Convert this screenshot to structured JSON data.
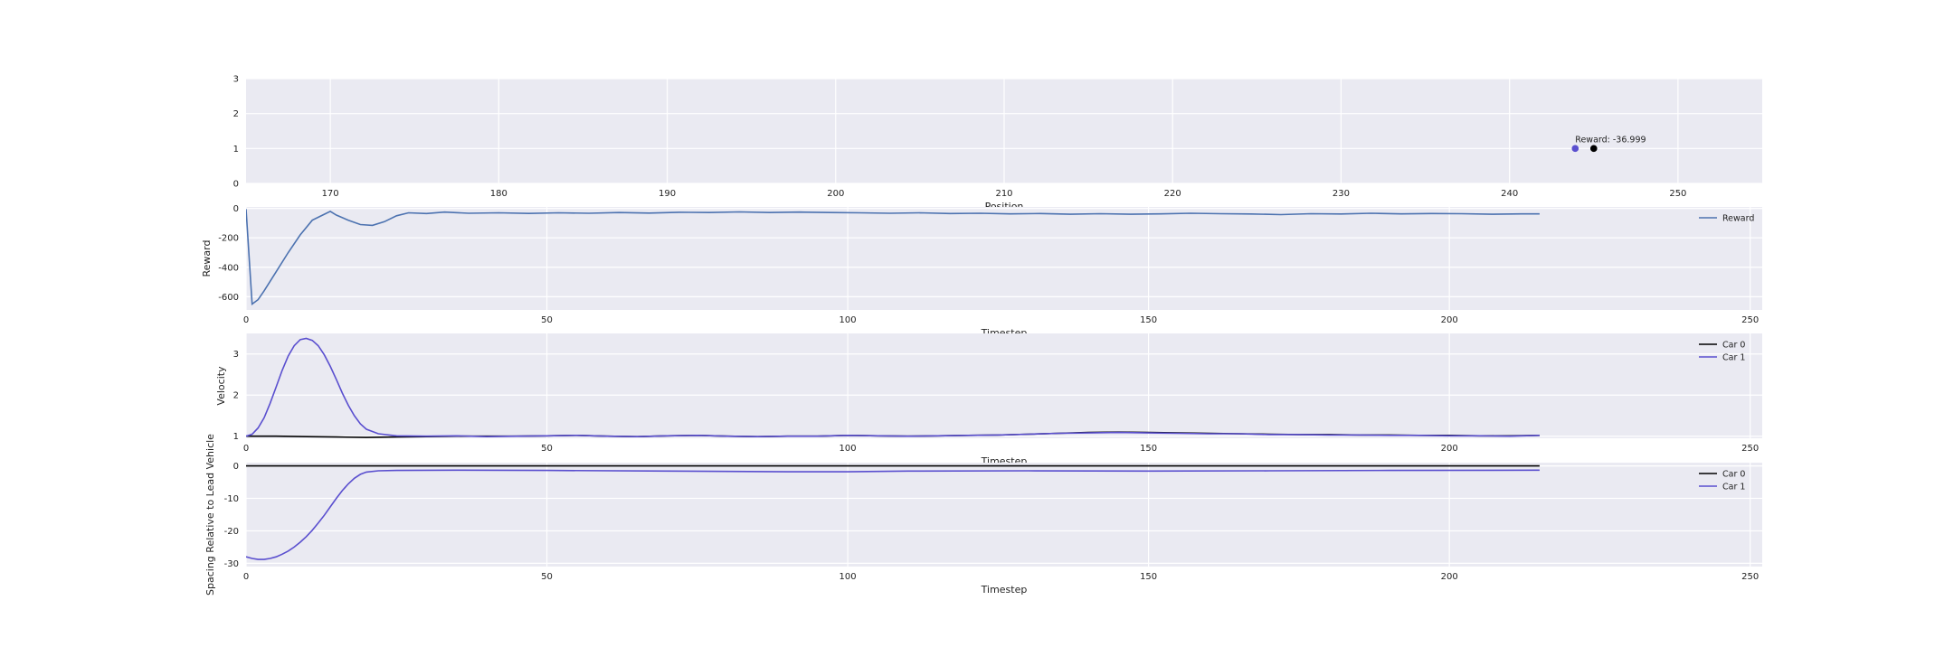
{
  "chart_data": [
    {
      "type": "scatter",
      "xlabel": "Position",
      "ylabel": "",
      "xlim": [
        165,
        255
      ],
      "ylim": [
        0,
        3
      ],
      "xticks": [
        170,
        180,
        190,
        200,
        210,
        220,
        230,
        240,
        250
      ],
      "yticks": [
        0,
        1,
        2,
        3
      ],
      "grid": true,
      "points": [
        {
          "x": 243.9,
          "y": 1,
          "color": "#5a4fcf"
        },
        {
          "x": 245.0,
          "y": 1,
          "color": "#000000"
        }
      ],
      "annotation": {
        "text": "Reward: -36.999",
        "x": 243.9,
        "y": 1.1
      }
    },
    {
      "type": "line",
      "xlabel": "Timestep",
      "ylabel": "Reward",
      "xlim": [
        0,
        252
      ],
      "ylim": [
        -690,
        10
      ],
      "xticks": [
        0,
        50,
        100,
        150,
        200,
        250
      ],
      "yticks": [
        0,
        -200,
        -400,
        -600
      ],
      "grid": true,
      "legend_position": "top-right",
      "series": [
        {
          "name": "Reward",
          "color": "#4c72b0",
          "points": [
            [
              0,
              -5
            ],
            [
              1,
              -650
            ],
            [
              2,
              -620
            ],
            [
              3,
              -560
            ],
            [
              5,
              -430
            ],
            [
              7,
              -300
            ],
            [
              9,
              -180
            ],
            [
              11,
              -80
            ],
            [
              13,
              -40
            ],
            [
              14,
              -20
            ],
            [
              15,
              -45
            ],
            [
              17,
              -80
            ],
            [
              19,
              -110
            ],
            [
              21,
              -115
            ],
            [
              23,
              -90
            ],
            [
              25,
              -50
            ],
            [
              27,
              -30
            ],
            [
              30,
              -35
            ],
            [
              33,
              -25
            ],
            [
              37,
              -33
            ],
            [
              42,
              -30
            ],
            [
              47,
              -34
            ],
            [
              52,
              -30
            ],
            [
              57,
              -33
            ],
            [
              62,
              -28
            ],
            [
              67,
              -32
            ],
            [
              72,
              -26
            ],
            [
              77,
              -28
            ],
            [
              82,
              -24
            ],
            [
              87,
              -28
            ],
            [
              92,
              -25
            ],
            [
              97,
              -28
            ],
            [
              102,
              -30
            ],
            [
              107,
              -33
            ],
            [
              112,
              -30
            ],
            [
              117,
              -35
            ],
            [
              122,
              -33
            ],
            [
              127,
              -37
            ],
            [
              132,
              -35
            ],
            [
              137,
              -40
            ],
            [
              142,
              -36
            ],
            [
              147,
              -40
            ],
            [
              152,
              -37
            ],
            [
              157,
              -33
            ],
            [
              162,
              -36
            ],
            [
              167,
              -38
            ],
            [
              172,
              -42
            ],
            [
              177,
              -36
            ],
            [
              182,
              -38
            ],
            [
              187,
              -33
            ],
            [
              192,
              -37
            ],
            [
              197,
              -35
            ],
            [
              202,
              -36
            ],
            [
              207,
              -40
            ],
            [
              212,
              -37
            ],
            [
              215,
              -37
            ]
          ]
        }
      ]
    },
    {
      "type": "line",
      "xlabel": "Timestep",
      "ylabel": "Velocity",
      "xlim": [
        0,
        252
      ],
      "ylim": [
        0.95,
        3.5
      ],
      "xticks": [
        0,
        50,
        100,
        150,
        200,
        250
      ],
      "yticks": [
        1,
        2,
        3
      ],
      "grid": true,
      "legend_position": "top-right",
      "series": [
        {
          "name": "Car 0",
          "color": "#000000",
          "points": [
            [
              0,
              1.0
            ],
            [
              5,
              1.0
            ],
            [
              10,
              0.99
            ],
            [
              15,
              0.98
            ],
            [
              20,
              0.97
            ],
            [
              25,
              0.98
            ],
            [
              30,
              0.99
            ],
            [
              35,
              1.0
            ],
            [
              40,
              1.0
            ],
            [
              45,
              1.0
            ],
            [
              50,
              1.01
            ],
            [
              55,
              1.02
            ],
            [
              60,
              1.0
            ],
            [
              65,
              0.99
            ],
            [
              70,
              1.01
            ],
            [
              75,
              1.02
            ],
            [
              80,
              1.0
            ],
            [
              85,
              0.99
            ],
            [
              90,
              1.0
            ],
            [
              95,
              1.0
            ],
            [
              100,
              1.02
            ],
            [
              105,
              1.01
            ],
            [
              110,
              1.0
            ],
            [
              115,
              1.01
            ],
            [
              120,
              1.02
            ],
            [
              125,
              1.03
            ],
            [
              130,
              1.05
            ],
            [
              135,
              1.07
            ],
            [
              140,
              1.09
            ],
            [
              145,
              1.1
            ],
            [
              150,
              1.09
            ],
            [
              155,
              1.08
            ],
            [
              160,
              1.07
            ],
            [
              165,
              1.06
            ],
            [
              170,
              1.05
            ],
            [
              175,
              1.04
            ],
            [
              180,
              1.04
            ],
            [
              185,
              1.03
            ],
            [
              190,
              1.03
            ],
            [
              195,
              1.02
            ],
            [
              200,
              1.02
            ],
            [
              205,
              1.01
            ],
            [
              210,
              1.01
            ],
            [
              215,
              1.02
            ]
          ]
        },
        {
          "name": "Car 1",
          "color": "#5a4fcf",
          "points": [
            [
              0,
              1.0
            ],
            [
              1,
              1.05
            ],
            [
              2,
              1.2
            ],
            [
              3,
              1.45
            ],
            [
              4,
              1.8
            ],
            [
              5,
              2.2
            ],
            [
              6,
              2.6
            ],
            [
              7,
              2.95
            ],
            [
              8,
              3.2
            ],
            [
              9,
              3.35
            ],
            [
              10,
              3.38
            ],
            [
              11,
              3.33
            ],
            [
              12,
              3.2
            ],
            [
              13,
              2.98
            ],
            [
              14,
              2.7
            ],
            [
              15,
              2.38
            ],
            [
              16,
              2.05
            ],
            [
              17,
              1.75
            ],
            [
              18,
              1.5
            ],
            [
              19,
              1.3
            ],
            [
              20,
              1.17
            ],
            [
              22,
              1.06
            ],
            [
              25,
              1.01
            ],
            [
              30,
              1.0
            ],
            [
              35,
              1.01
            ],
            [
              40,
              0.99
            ],
            [
              45,
              1.0
            ],
            [
              50,
              1.01
            ],
            [
              55,
              1.02
            ],
            [
              60,
              1.0
            ],
            [
              65,
              0.99
            ],
            [
              70,
              1.01
            ],
            [
              75,
              1.02
            ],
            [
              80,
              1.0
            ],
            [
              85,
              0.99
            ],
            [
              90,
              1.0
            ],
            [
              95,
              1.0
            ],
            [
              100,
              1.02
            ],
            [
              105,
              1.01
            ],
            [
              110,
              1.0
            ],
            [
              115,
              1.01
            ],
            [
              120,
              1.02
            ],
            [
              125,
              1.03
            ],
            [
              130,
              1.05
            ],
            [
              135,
              1.07
            ],
            [
              140,
              1.08
            ],
            [
              145,
              1.09
            ],
            [
              150,
              1.08
            ],
            [
              155,
              1.07
            ],
            [
              160,
              1.06
            ],
            [
              165,
              1.06
            ],
            [
              170,
              1.04
            ],
            [
              175,
              1.04
            ],
            [
              180,
              1.03
            ],
            [
              185,
              1.03
            ],
            [
              190,
              1.02
            ],
            [
              195,
              1.02
            ],
            [
              200,
              1.01
            ],
            [
              205,
              1.01
            ],
            [
              210,
              1.0
            ],
            [
              215,
              1.02
            ]
          ]
        }
      ]
    },
    {
      "type": "line",
      "xlabel": "Timestep",
      "ylabel": "Spacing Relative to Lead Vehicle",
      "xlim": [
        0,
        252
      ],
      "ylim": [
        -31,
        1
      ],
      "xticks": [
        0,
        50,
        100,
        150,
        200,
        250
      ],
      "yticks": [
        0,
        -10,
        -20,
        -30
      ],
      "grid": true,
      "legend_position": "top-right",
      "series": [
        {
          "name": "Car 0",
          "color": "#000000",
          "points": [
            [
              0,
              0
            ],
            [
              215,
              0
            ]
          ]
        },
        {
          "name": "Car 1",
          "color": "#5a4fcf",
          "points": [
            [
              0,
              -28
            ],
            [
              1,
              -28.5
            ],
            [
              2,
              -28.8
            ],
            [
              3,
              -28.8
            ],
            [
              4,
              -28.5
            ],
            [
              5,
              -28
            ],
            [
              6,
              -27.2
            ],
            [
              7,
              -26.2
            ],
            [
              8,
              -25
            ],
            [
              9,
              -23.5
            ],
            [
              10,
              -21.8
            ],
            [
              11,
              -19.8
            ],
            [
              12,
              -17.6
            ],
            [
              13,
              -15.2
            ],
            [
              14,
              -12.6
            ],
            [
              15,
              -10
            ],
            [
              16,
              -7.6
            ],
            [
              17,
              -5.5
            ],
            [
              18,
              -3.8
            ],
            [
              19,
              -2.6
            ],
            [
              20,
              -1.9
            ],
            [
              22,
              -1.5
            ],
            [
              25,
              -1.4
            ],
            [
              35,
              -1.3
            ],
            [
              50,
              -1.4
            ],
            [
              70,
              -1.6
            ],
            [
              90,
              -1.8
            ],
            [
              100,
              -1.8
            ],
            [
              110,
              -1.6
            ],
            [
              130,
              -1.5
            ],
            [
              150,
              -1.6
            ],
            [
              170,
              -1.5
            ],
            [
              190,
              -1.4
            ],
            [
              215,
              -1.3
            ]
          ]
        }
      ]
    }
  ]
}
